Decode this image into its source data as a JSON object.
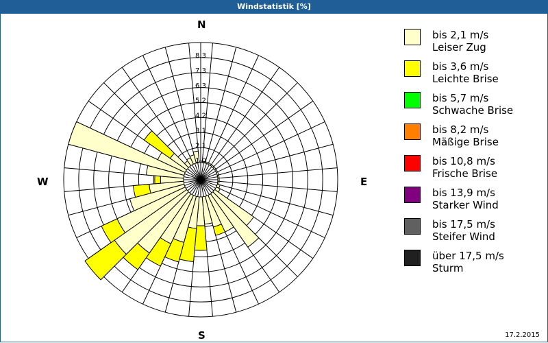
{
  "window": {
    "title": "Windstatistik [%]"
  },
  "compass": {
    "n": "N",
    "e": "E",
    "s": "S",
    "w": "W"
  },
  "footer": {
    "date": "17.2.2015"
  },
  "legend": [
    {
      "range": "bis 2,1 m/s",
      "name": "Leiser Zug",
      "color": "#ffffcc"
    },
    {
      "range": "bis 3,6 m/s",
      "name": "Leichte Brise",
      "color": "#ffff00"
    },
    {
      "range": "bis 5,7 m/s",
      "name": "Schwache Brise",
      "color": "#00ff00"
    },
    {
      "range": "bis 8,2 m/s",
      "name": "Mäßige Brise",
      "color": "#ff8000"
    },
    {
      "range": "bis 10,8 m/s",
      "name": "Frische Brise",
      "color": "#ff0000"
    },
    {
      "range": "bis 13,9 m/s",
      "name": "Starker Wind",
      "color": "#800080"
    },
    {
      "range": "bis 17,5 m/s",
      "name": "Steifer Wind",
      "color": "#606060"
    },
    {
      "range": "über 17,5 m/s",
      "name": "Sturm",
      "color": "#202020"
    }
  ],
  "chart_data": {
    "type": "wind-rose",
    "title": "Windstatistik [%]",
    "radial_ticks": [
      "1,0",
      "2,1",
      "3,1",
      "4,2",
      "5,2",
      "6,3",
      "7,3",
      "8,3"
    ],
    "radial_max": 8.3,
    "sector_width_deg": 10,
    "directions_deg": [
      0,
      10,
      20,
      30,
      40,
      50,
      60,
      70,
      80,
      90,
      100,
      110,
      120,
      130,
      140,
      150,
      160,
      170,
      180,
      190,
      200,
      210,
      220,
      230,
      240,
      250,
      260,
      270,
      280,
      290,
      300,
      310,
      320,
      330,
      340,
      350
    ],
    "series": [
      {
        "name": "bis 2,1 m/s",
        "values": [
          0.1,
          0.1,
          0.1,
          0.1,
          0.1,
          0.1,
          0.1,
          0.1,
          0.1,
          0.1,
          0.1,
          0.2,
          0.3,
          3.3,
          4.5,
          2.8,
          2.2,
          1.9,
          2.0,
          2.2,
          3.3,
          3.7,
          5.0,
          6.1,
          5.2,
          3.9,
          2.4,
          1.6,
          2.6,
          8.3,
          2.1,
          1.4,
          0.4,
          0.5,
          0.6,
          0.8
        ]
      },
      {
        "name": "bis 3,6 m/s",
        "values": [
          0,
          0,
          0,
          0,
          0,
          0,
          0,
          0,
          0,
          0,
          0,
          0,
          0,
          0,
          0,
          0,
          0.6,
          0,
          1.7,
          2.3,
          1.4,
          1.7,
          1.4,
          2.5,
          1.2,
          0,
          1.1,
          0.4,
          0,
          0,
          0,
          2.2,
          0,
          0,
          0,
          0
        ]
      },
      {
        "name": "bis 5,7 m/s",
        "values": [
          0,
          0,
          0,
          0,
          0,
          0,
          0,
          0,
          0,
          0,
          0,
          0,
          0,
          0,
          0,
          0,
          0,
          0,
          0,
          0,
          0,
          0,
          0,
          0,
          0,
          0,
          0,
          0,
          0,
          0,
          0,
          0,
          0,
          0,
          0,
          0
        ]
      },
      {
        "name": "bis 8,2 m/s",
        "values": [
          0,
          0,
          0,
          0,
          0,
          0,
          0,
          0,
          0,
          0,
          0,
          0,
          0,
          0,
          0,
          0,
          0,
          0,
          0,
          0,
          0,
          0,
          0,
          0,
          0,
          0,
          0,
          0,
          0,
          0,
          0,
          0,
          0,
          0,
          0,
          0
        ]
      },
      {
        "name": "bis 10,8 m/s",
        "values": [
          0,
          0,
          0,
          0,
          0,
          0,
          0,
          0,
          0,
          0,
          0,
          0,
          0,
          0,
          0,
          0,
          0,
          0,
          0,
          0,
          0,
          0,
          0,
          0,
          0,
          0,
          0,
          0,
          0,
          0,
          0,
          0,
          0,
          0,
          0,
          0
        ]
      },
      {
        "name": "bis 13,9 m/s",
        "values": [
          0,
          0,
          0,
          0,
          0,
          0,
          0,
          0,
          0,
          0,
          0,
          0,
          0,
          0,
          0,
          0,
          0,
          0,
          0,
          0,
          0,
          0,
          0,
          0,
          0,
          0,
          0,
          0,
          0,
          0,
          0,
          0,
          0,
          0,
          0,
          0
        ]
      },
      {
        "name": "bis 17,5 m/s",
        "values": [
          0,
          0,
          0,
          0,
          0,
          0,
          0,
          0,
          0,
          0,
          0,
          0,
          0,
          0,
          0,
          0,
          0,
          0,
          0,
          0,
          0,
          0,
          0,
          0,
          0,
          0,
          0,
          0,
          0,
          0,
          0,
          0,
          0,
          0,
          0,
          0
        ]
      },
      {
        "name": "über 17,5 m/s",
        "values": [
          0,
          0,
          0,
          0,
          0,
          0,
          0,
          0,
          0,
          0,
          0,
          0,
          0,
          0,
          0,
          0,
          0,
          0,
          0,
          0,
          0,
          0,
          0,
          0,
          0,
          0,
          0,
          0,
          0,
          0,
          0,
          0,
          0,
          0,
          0,
          0
        ]
      }
    ],
    "legend_position": "right",
    "grid": true
  }
}
